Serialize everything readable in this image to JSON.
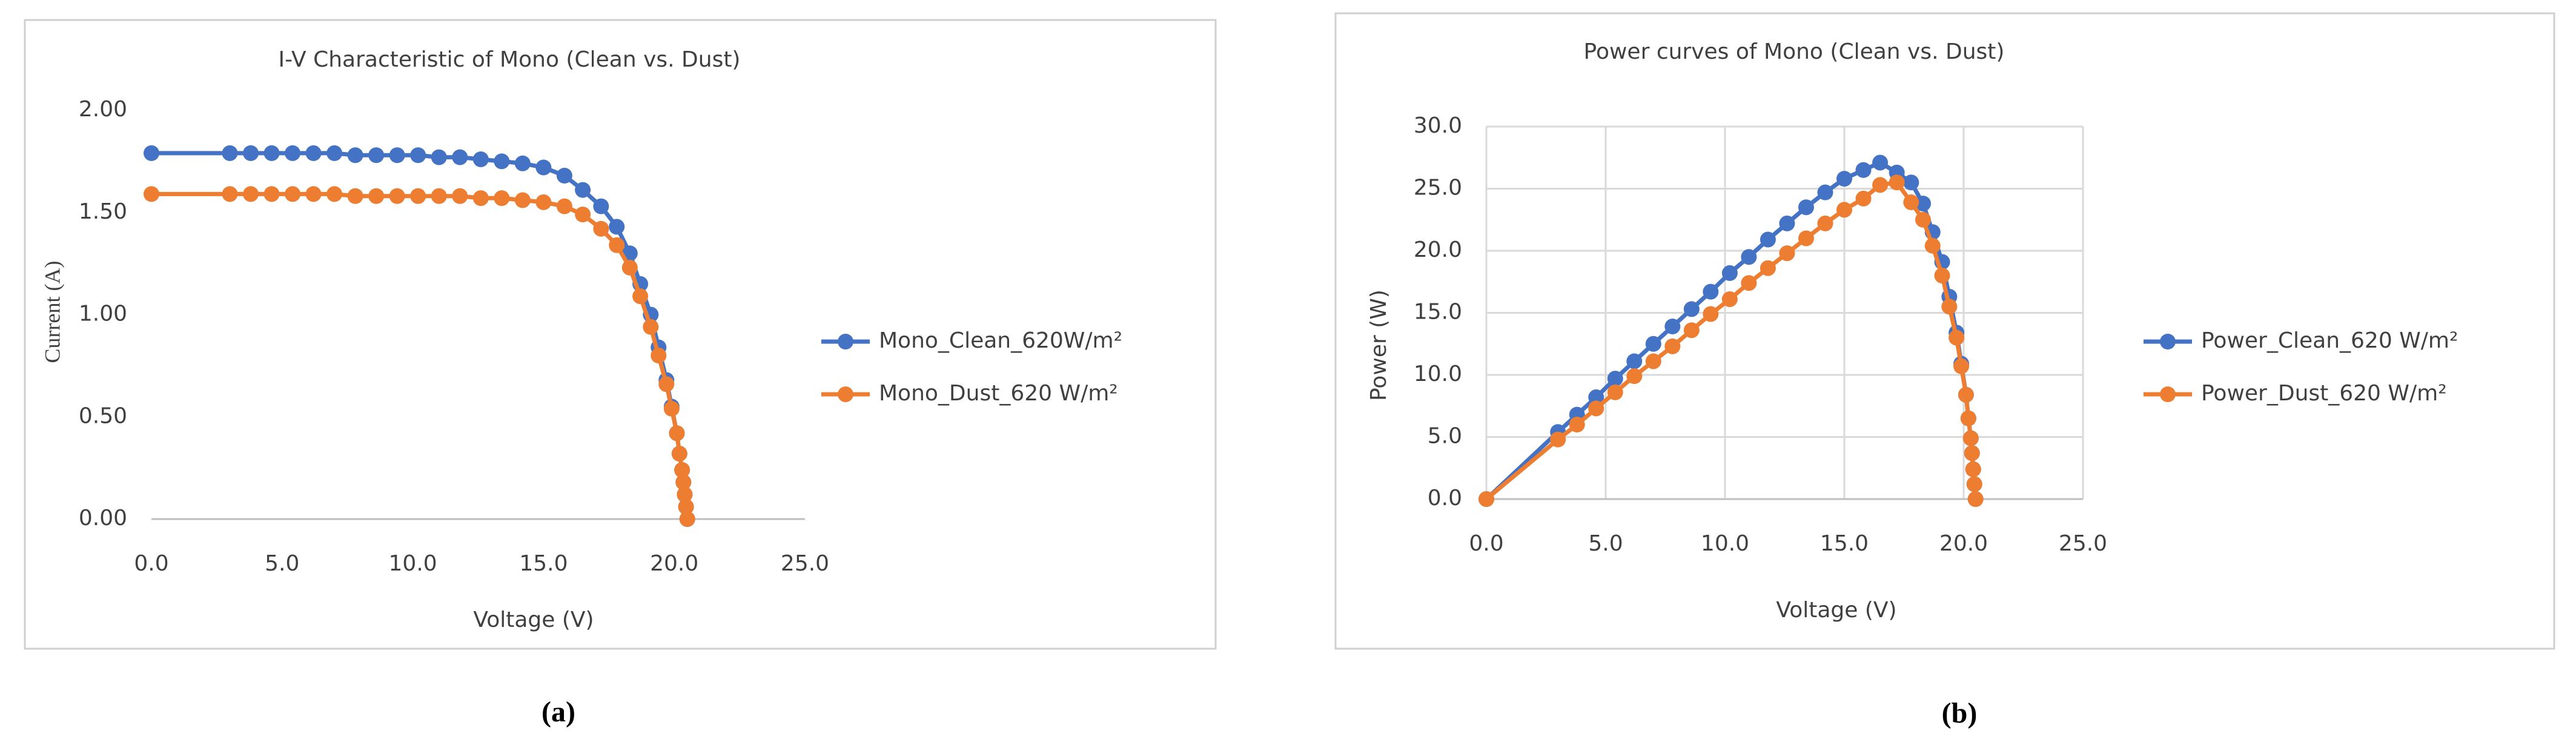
{
  "chart_data": [
    {
      "type": "line",
      "title": "I-V Characteristic of Mono (Clean vs. Dust)",
      "xlabel": "Voltage (V)",
      "ylabel": "Current (A)",
      "caption": "(a)",
      "x": [
        0,
        3.0,
        3.8,
        4.6,
        5.4,
        6.2,
        7.0,
        7.8,
        8.6,
        9.4,
        10.2,
        11.0,
        11.8,
        12.6,
        13.4,
        14.2,
        15.0,
        15.8,
        16.5,
        17.2,
        17.8,
        18.3,
        18.7,
        19.1,
        19.4,
        19.7,
        19.9,
        20.1,
        20.2,
        20.3,
        20.35,
        20.4,
        20.45,
        20.5
      ],
      "series": [
        {
          "name": "Mono_Clean_620W/m²",
          "color": "#4472c4",
          "values": [
            1.79,
            1.79,
            1.79,
            1.79,
            1.79,
            1.79,
            1.79,
            1.78,
            1.78,
            1.78,
            1.78,
            1.77,
            1.77,
            1.76,
            1.75,
            1.74,
            1.72,
            1.68,
            1.61,
            1.53,
            1.43,
            1.3,
            1.15,
            1.0,
            0.84,
            0.68,
            0.55,
            0.42,
            0.32,
            0.24,
            0.18,
            0.12,
            0.06,
            0.0
          ]
        },
        {
          "name": "Mono_Dust_620 W/m²",
          "color": "#ed7d31",
          "values": [
            1.59,
            1.59,
            1.59,
            1.59,
            1.59,
            1.59,
            1.59,
            1.58,
            1.58,
            1.58,
            1.58,
            1.58,
            1.58,
            1.57,
            1.57,
            1.56,
            1.55,
            1.53,
            1.49,
            1.42,
            1.34,
            1.23,
            1.09,
            0.94,
            0.8,
            0.66,
            0.54,
            0.42,
            0.32,
            0.24,
            0.18,
            0.12,
            0.06,
            0.0
          ]
        }
      ],
      "xlim": [
        0,
        25
      ],
      "xticks": [
        {
          "value": 0,
          "label": "0.0"
        },
        {
          "value": 5,
          "label": "5.0"
        },
        {
          "value": 10,
          "label": "10.0"
        },
        {
          "value": 15,
          "label": "15.0"
        },
        {
          "value": 20,
          "label": "20.0"
        },
        {
          "value": 25,
          "label": "25.0"
        }
      ],
      "ylim": [
        0,
        2
      ],
      "yticks": [
        {
          "value": 0,
          "label": "0.00"
        },
        {
          "value": 0.5,
          "label": "0.50"
        },
        {
          "value": 1,
          "label": "1.00"
        },
        {
          "value": 1.5,
          "label": "1.50"
        },
        {
          "value": 2,
          "label": "2.00"
        }
      ],
      "grid": false,
      "legend": "right"
    },
    {
      "type": "line",
      "title": "Power curves of Mono (Clean vs. Dust)",
      "xlabel": "Voltage (V)",
      "ylabel": "Power  (W)",
      "caption": "(b)",
      "x": [
        0,
        3.0,
        3.8,
        4.6,
        5.4,
        6.2,
        7.0,
        7.8,
        8.6,
        9.4,
        10.2,
        11.0,
        11.8,
        12.6,
        13.4,
        14.2,
        15.0,
        15.8,
        16.5,
        17.2,
        17.8,
        18.3,
        18.7,
        19.1,
        19.4,
        19.7,
        19.9,
        20.1,
        20.2,
        20.3,
        20.35,
        20.4,
        20.45,
        20.5
      ],
      "series": [
        {
          "name": "Power_Clean_620 W/m²",
          "color": "#4472c4",
          "values": [
            0,
            5.4,
            6.8,
            8.2,
            9.7,
            11.1,
            12.5,
            13.9,
            15.3,
            16.7,
            18.2,
            19.5,
            20.9,
            22.2,
            23.5,
            24.7,
            25.8,
            26.5,
            27.1,
            26.3,
            25.5,
            23.8,
            21.5,
            19.1,
            16.3,
            13.4,
            10.9,
            8.4,
            6.5,
            4.9,
            3.7,
            2.4,
            1.2,
            0
          ]
        },
        {
          "name": "Power_Dust_620 W/m²",
          "color": "#ed7d31",
          "values": [
            0,
            4.8,
            6.0,
            7.3,
            8.6,
            9.9,
            11.1,
            12.3,
            13.6,
            14.9,
            16.1,
            17.4,
            18.6,
            19.8,
            21.0,
            22.2,
            23.3,
            24.2,
            25.3,
            25.5,
            23.9,
            22.5,
            20.4,
            18.0,
            15.5,
            13.0,
            10.7,
            8.4,
            6.5,
            4.9,
            3.7,
            2.4,
            1.2,
            0
          ]
        }
      ],
      "xlim": [
        0,
        25
      ],
      "xticks": [
        {
          "value": 0,
          "label": "0.0"
        },
        {
          "value": 5,
          "label": "5.0"
        },
        {
          "value": 10,
          "label": "10.0"
        },
        {
          "value": 15,
          "label": "15.0"
        },
        {
          "value": 20,
          "label": "20.0"
        },
        {
          "value": 25,
          "label": "25.0"
        }
      ],
      "ylim": [
        0,
        30
      ],
      "yticks": [
        {
          "value": 0,
          "label": "0.0"
        },
        {
          "value": 5,
          "label": "5.0"
        },
        {
          "value": 10,
          "label": "10.0"
        },
        {
          "value": 15,
          "label": "15.0"
        },
        {
          "value": 20,
          "label": "20.0"
        },
        {
          "value": 25,
          "label": "25.0"
        },
        {
          "value": 30,
          "label": "30.0"
        }
      ],
      "grid": true,
      "legend": "right"
    }
  ]
}
